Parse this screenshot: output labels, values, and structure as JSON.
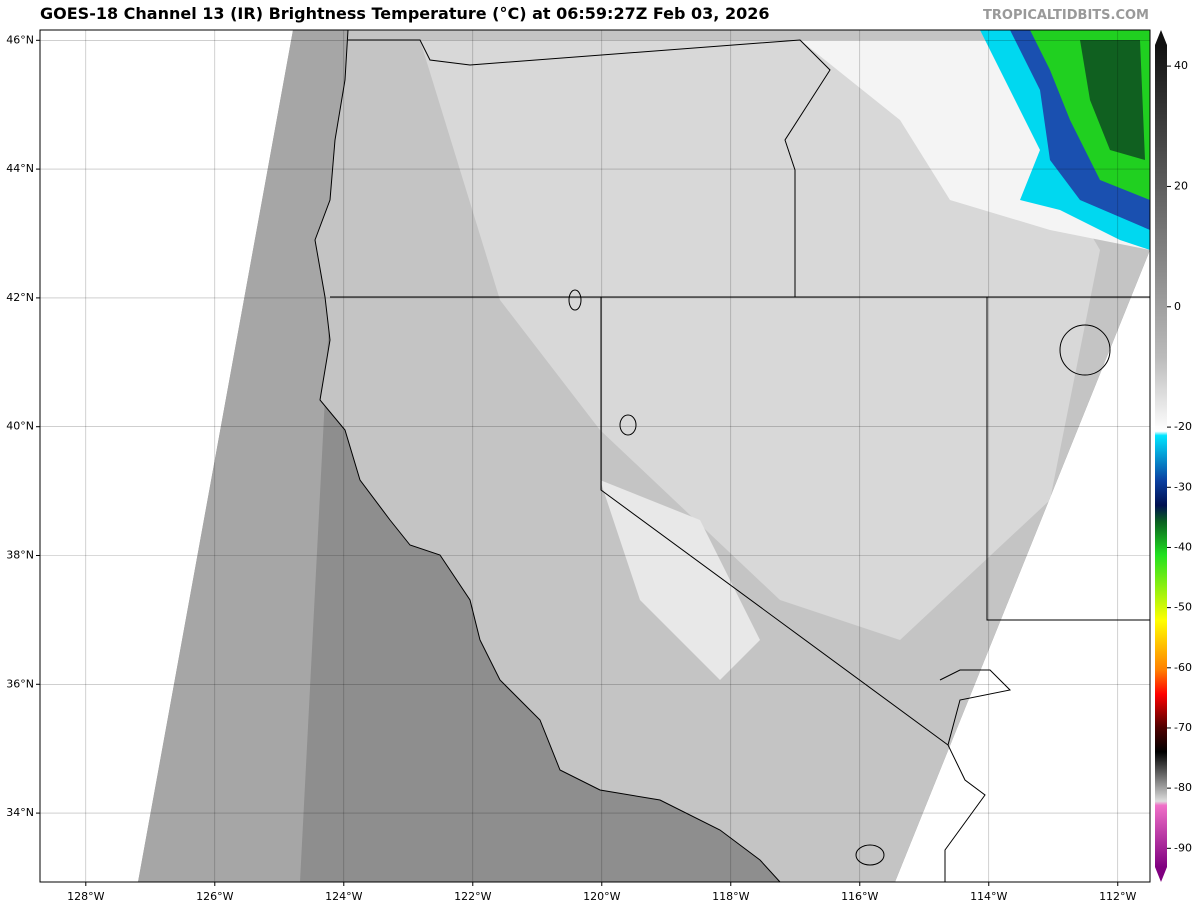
{
  "title": "GOES-18 Channel 13 (IR) Brightness Temperature (°C) at 06:59:27Z Feb 03, 2026",
  "watermark": "TROPICALTIDBITS.COM",
  "map": {
    "xlim": [
      -128.71,
      -111.5
    ],
    "ylim": [
      32.93,
      46.16
    ],
    "xticks": [
      {
        "value": -128,
        "label": "128°W"
      },
      {
        "value": -126,
        "label": "126°W"
      },
      {
        "value": -124,
        "label": "124°W"
      },
      {
        "value": -122,
        "label": "122°W"
      },
      {
        "value": -120,
        "label": "120°W"
      },
      {
        "value": -118,
        "label": "118°W"
      },
      {
        "value": -116,
        "label": "116°W"
      },
      {
        "value": -114,
        "label": "114°W"
      },
      {
        "value": -112,
        "label": "112°W"
      }
    ],
    "yticks": [
      {
        "value": 46,
        "label": "46°N"
      },
      {
        "value": 44,
        "label": "44°N"
      },
      {
        "value": 42,
        "label": "42°N"
      },
      {
        "value": 40,
        "label": "40°N"
      },
      {
        "value": 38,
        "label": "38°N"
      },
      {
        "value": 36,
        "label": "36°N"
      },
      {
        "value": 34,
        "label": "34°N"
      }
    ],
    "grid": true
  },
  "colorbar": {
    "clim": [
      -95.6,
      46
    ],
    "ticks": [
      40,
      20,
      0,
      -20,
      -30,
      -40,
      -50,
      -60,
      -70,
      -80,
      -90
    ]
  }
}
